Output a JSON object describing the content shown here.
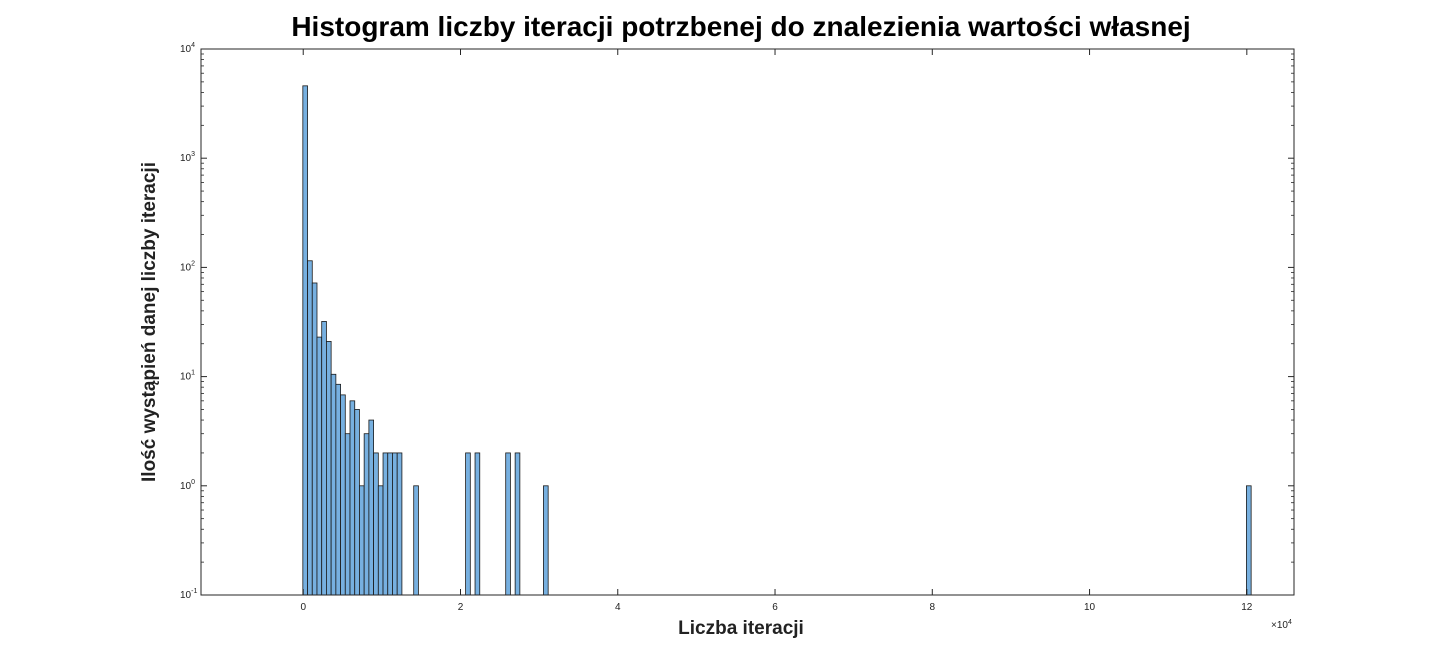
{
  "chart_data": {
    "type": "bar",
    "title": "Histogram liczby iteracji potrzbenej do znalezienia wartości własnej",
    "xlabel": "Liczba iteracji",
    "ylabel": "Ilość wystąpień danej liczby iteracji",
    "x_exponent_label": "×10",
    "x_exponent": "4",
    "yscale": "log",
    "ylim": [
      0.1,
      10000
    ],
    "xlim": [
      -13000,
      126000
    ],
    "x_ticks": [
      0,
      20000,
      40000,
      60000,
      80000,
      100000,
      120000
    ],
    "x_tick_labels": [
      "0",
      "2",
      "4",
      "6",
      "8",
      "10",
      "12"
    ],
    "y_ticks": [
      0.1,
      1,
      10,
      100,
      1000,
      10000
    ],
    "y_tick_base": "10",
    "y_tick_exponents": [
      "-1",
      "0",
      "1",
      "2",
      "3",
      "4"
    ],
    "grid": false,
    "bar_color": "#77b0e0",
    "bar_edge_color": "#1a1a1a",
    "bin_width": 600,
    "x": [
      250,
      850,
      1450,
      2050,
      2650,
      3250,
      3850,
      4450,
      5050,
      5650,
      6250,
      6850,
      7450,
      8050,
      8650,
      9250,
      9850,
      10450,
      11050,
      11650,
      12250,
      14350,
      20950,
      22150,
      26050,
      27250,
      30850,
      120250
    ],
    "values": [
      4600,
      115,
      72,
      23,
      32,
      21,
      10.5,
      8.5,
      6.8,
      3,
      6,
      5,
      1,
      3,
      4,
      2,
      1,
      2,
      2,
      2,
      2,
      1,
      2,
      2,
      2,
      2,
      1,
      1
    ]
  }
}
